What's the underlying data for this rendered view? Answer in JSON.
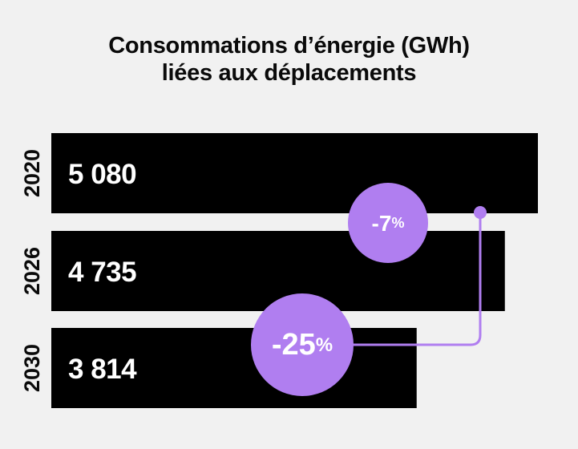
{
  "title_line1": "Consommations d’énergie (GWh)",
  "title_line2": "liées aux déplacements",
  "colors": {
    "background": "#f1f1f1",
    "bar": "#000000",
    "accent": "#b07ef0",
    "text": "#0a0a0a"
  },
  "chart_data": {
    "type": "bar",
    "orientation": "horizontal",
    "categories": [
      "2020",
      "2026",
      "2030"
    ],
    "values": [
      5080,
      4735,
      3814
    ],
    "value_labels": [
      "5 080",
      "4 735",
      "3 814"
    ],
    "title": "Consommations d’énergie (GWh) liées aux déplacements",
    "annotations": [
      {
        "from": "2020",
        "to": "2026",
        "value": "-7",
        "unit": "%"
      },
      {
        "from": "2020",
        "to": "2030",
        "value": "-25",
        "unit": "%"
      }
    ],
    "grid": false,
    "legend": "none"
  }
}
